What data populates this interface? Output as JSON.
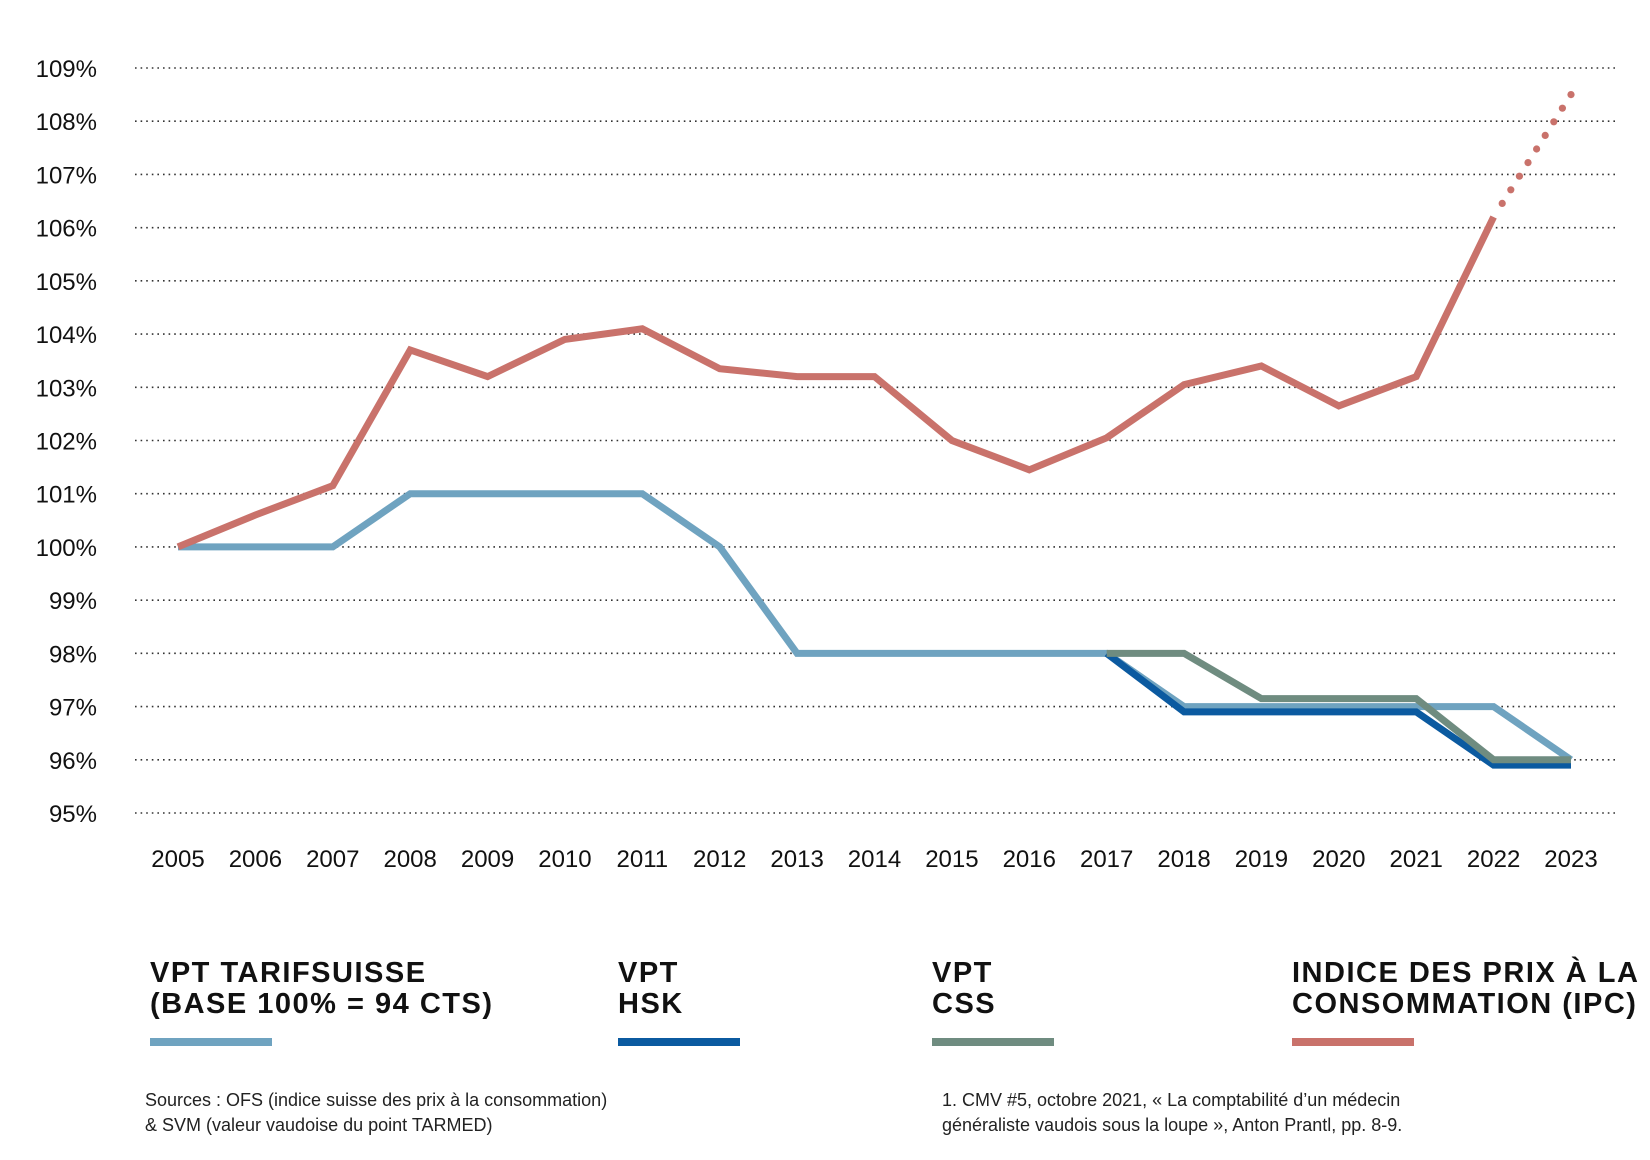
{
  "chart_data": {
    "type": "line",
    "title": "",
    "xlabel": "",
    "ylabel": "",
    "x": [
      "2005",
      "2006",
      "2007",
      "2008",
      "2009",
      "2010",
      "2011",
      "2012",
      "2013",
      "2014",
      "2015",
      "2016",
      "2017",
      "2018",
      "2019",
      "2020",
      "2021",
      "2022",
      "2023"
    ],
    "yticks": [
      "109%",
      "108%",
      "107%",
      "106%",
      "105%",
      "104%",
      "103%",
      "102%",
      "101%",
      "100%",
      "99%",
      "98%",
      "97%",
      "96%",
      "95%"
    ],
    "ylim": [
      95,
      109
    ],
    "grid": "horizontal-dotted",
    "legend_placement": "bottom",
    "series": [
      {
        "name": "VPT TARIFSUISSE (BASE 100% = 94 CTS)",
        "color": "#6fa3c0",
        "points": [
          [
            2005,
            100
          ],
          [
            2007,
            100
          ],
          [
            2008,
            101
          ],
          [
            2011,
            101
          ],
          [
            2012,
            100
          ],
          [
            2013,
            98
          ],
          [
            2017,
            98
          ],
          [
            2018,
            97
          ],
          [
            2022,
            97
          ],
          [
            2023,
            96
          ]
        ]
      },
      {
        "name": "VPT HSK",
        "color": "#0b5aa0",
        "points": [
          [
            2017,
            98
          ],
          [
            2018,
            96.9
          ],
          [
            2021,
            96.9
          ],
          [
            2022,
            95.9
          ],
          [
            2023,
            95.9
          ]
        ]
      },
      {
        "name": "VPT CSS",
        "color": "#6f8c80",
        "points": [
          [
            2017,
            98
          ],
          [
            2018,
            98
          ],
          [
            2019,
            97.15
          ],
          [
            2021,
            97.15
          ],
          [
            2022,
            96
          ],
          [
            2023,
            96
          ]
        ]
      },
      {
        "name": "INDICE DES PRIX À LA CONSOMMATION (IPC)",
        "color": "#c9726b",
        "points": [
          [
            2005,
            100
          ],
          [
            2006,
            100.6
          ],
          [
            2007,
            101.15
          ],
          [
            2008,
            103.7
          ],
          [
            2009,
            103.2
          ],
          [
            2010,
            103.9
          ],
          [
            2011,
            104.1
          ],
          [
            2012,
            103.35
          ],
          [
            2013,
            103.2
          ],
          [
            2014,
            103.2
          ],
          [
            2015,
            102
          ],
          [
            2016,
            101.45
          ],
          [
            2017,
            102.05
          ],
          [
            2018,
            103.05
          ],
          [
            2019,
            103.4
          ],
          [
            2020,
            102.65
          ],
          [
            2021,
            103.2
          ],
          [
            2022,
            106.2
          ]
        ],
        "projection": [
          [
            2022,
            106.2
          ],
          [
            2023,
            108.5
          ]
        ]
      }
    ]
  },
  "legend": [
    {
      "line1": "VPT TARIFSUISSE",
      "line2": "(BASE 100% = 94 CTS)",
      "color": "#6fa3c0"
    },
    {
      "line1": "VPT",
      "line2": "HSK",
      "color": "#0b5aa0"
    },
    {
      "line1": "VPT",
      "line2": "CSS",
      "color": "#6f8c80"
    },
    {
      "line1": "INDICE DES PRIX À LA",
      "line2": "CONSOMMATION (IPC)",
      "color": "#c9726b"
    }
  ],
  "sources": {
    "line1": "Sources : OFS (indice suisse des prix à la consommation)",
    "line2": "& SVM (valeur vaudoise du point TARMED)"
  },
  "footnote": {
    "line1": "1. CMV #5, octobre 2021, « La comptabilité d’un médecin",
    "line2": "généraliste vaudois sous la loupe », Anton Prantl, pp. 8-9."
  }
}
